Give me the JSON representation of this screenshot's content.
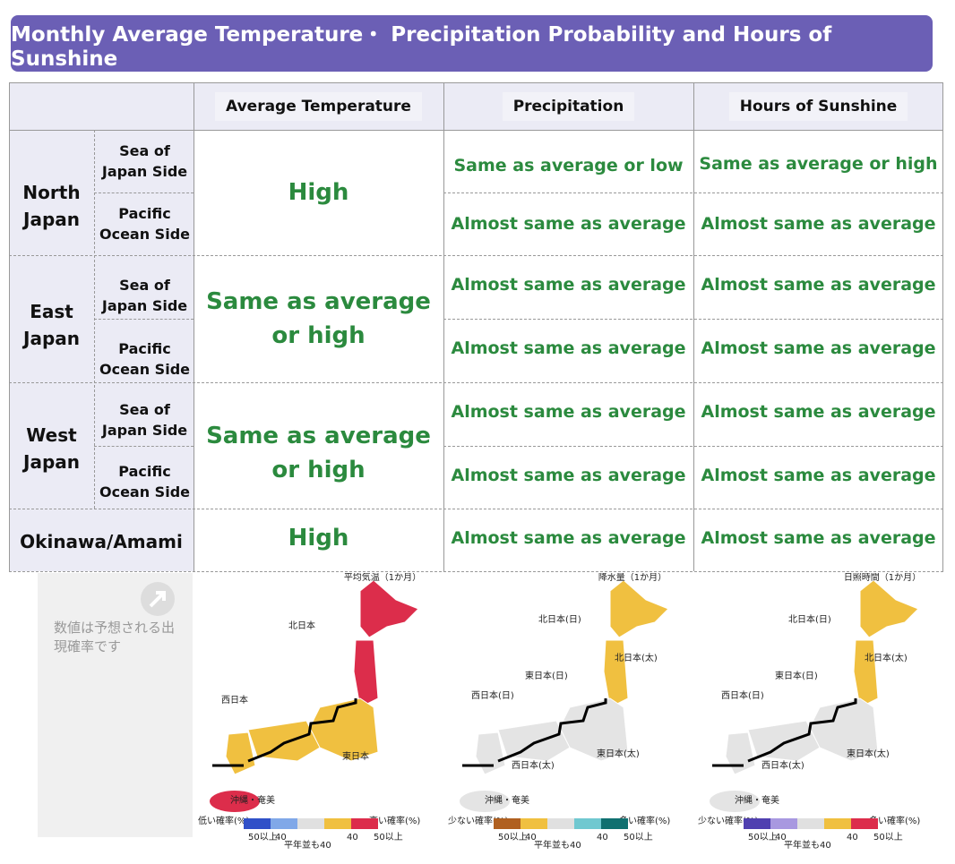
{
  "header": {
    "title": "Monthly Average Temperature・ Precipitation Probability and Hours of Sunshine"
  },
  "table": {
    "headers": [
      "Average Temperature",
      "Precipitation",
      "Hours of Sunshine"
    ],
    "regions": [
      {
        "name": "North Japan",
        "temperature": "High",
        "sides": [
          {
            "side": "Sea of Japan Side",
            "precipitation": "Same as average or low",
            "sunshine": "Same as average or high"
          },
          {
            "side": "Pacific Ocean Side",
            "precipitation": "Almost same as average",
            "sunshine": "Almost same as average"
          }
        ]
      },
      {
        "name": "East Japan",
        "temperature": "Same as average or high",
        "sides": [
          {
            "side": "Sea of Japan Side",
            "precipitation": "Almost same as average",
            "sunshine": "Almost same as average"
          },
          {
            "side": "Pacific Ocean Side",
            "precipitation": "Almost same as average",
            "sunshine": "Almost same as average"
          }
        ]
      },
      {
        "name": "West Japan",
        "temperature": "Same as average or high",
        "sides": [
          {
            "side": "Sea of Japan Side",
            "precipitation": "Almost same as average",
            "sunshine": "Almost same as average"
          },
          {
            "side": "Pacific Ocean Side",
            "precipitation": "Almost same as average",
            "sunshine": "Almost same as average"
          }
        ]
      },
      {
        "name": "Okinawa/Amami",
        "temperature": "High",
        "precipitation": "Almost same as average",
        "sunshine": "Almost same as average"
      }
    ]
  },
  "maps": {
    "note": "数値は予想される出現確率です",
    "items": [
      {
        "title": "平均気温（1か月）",
        "labels": [
          "北日本",
          "西日本",
          "東日本",
          "沖縄・奄美"
        ],
        "low": "低い確率(%)",
        "high": "高い確率(%)",
        "ticks": [
          "50以上",
          "40",
          "40",
          "50以上"
        ],
        "normal": "平年並も40"
      },
      {
        "title": "降水量（1か月）",
        "labels": [
          "北日本(日)",
          "北日本(太)",
          "東日本(日)",
          "西日本(日)",
          "東日本(太)",
          "西日本(太)",
          "沖縄・奄美"
        ],
        "low": "少ない確率(%)",
        "high": "多い確率(%)",
        "ticks": [
          "50以上",
          "40",
          "40",
          "50以上"
        ],
        "normal": "平年並も40"
      },
      {
        "title": "日照時間（1か月）",
        "labels": [
          "北日本(日)",
          "北日本(太)",
          "東日本(日)",
          "西日本(日)",
          "東日本(太)",
          "西日本(太)",
          "沖縄・奄美"
        ],
        "low": "少ない確率(%)",
        "high": "多い確率(%)",
        "ticks": [
          "50以上",
          "40",
          "40",
          "50以上"
        ],
        "normal": "平年並も40"
      }
    ]
  }
}
